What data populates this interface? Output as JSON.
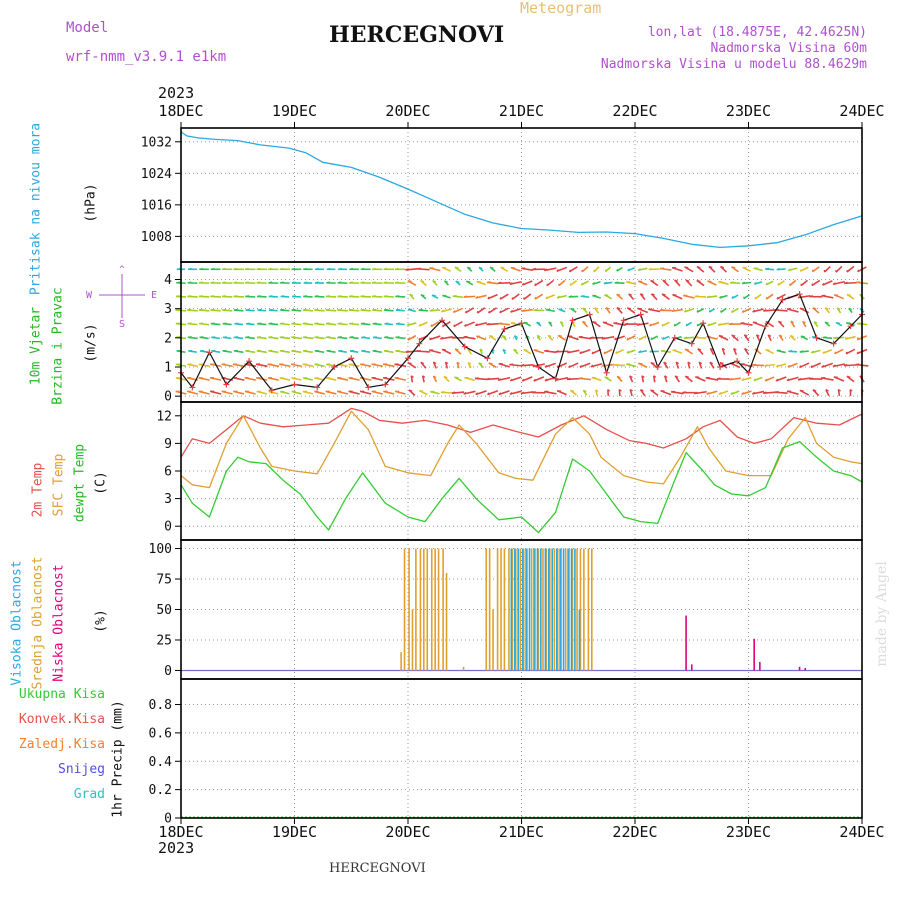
{
  "header": {
    "model_label": "Model",
    "model_name": "wrf-nmm_v3.9.1 e1km",
    "title": "HERCEGNOVI",
    "meteogram_label": "Meteogram",
    "lonlat": "lon,lat (18.4875E, 42.4625N)",
    "altitude": "Nadmorska Visina 60m",
    "model_altitude": "Nadmorska Visina u modelu 88.4629m",
    "year_top": "2023",
    "year_bottom": "2023",
    "footer_title": "HERCEGNOVI",
    "credit": "made by Angel"
  },
  "colors": {
    "pressure": "#29a9e0",
    "wind_label": "#22bb22",
    "t2m": "#e8504a",
    "sfc": "#e0a030",
    "dewpt": "#33cc33",
    "high_cloud": "#29a9e0",
    "mid_cloud": "#e0a030",
    "low_cloud": "#e0007a",
    "total_precip": "#33cc33",
    "conv_precip": "#e8504a",
    "frozen_precip": "#f08030",
    "snow": "#5050e0",
    "hail": "#30c0c0",
    "compass": "#b050d0"
  },
  "chart_data": [
    {
      "type": "line",
      "panel": "pressure",
      "ylabel_main": "Pritisak na nivou mora",
      "ylabel_unit": "(hPa)",
      "x_days": [
        "18DEC",
        "19DEC",
        "20DEC",
        "21DEC",
        "22DEC",
        "23DEC",
        "24DEC"
      ],
      "yticks": [
        1008,
        1016,
        1024,
        1032
      ],
      "ylim": [
        1001.5,
        1035.5
      ],
      "grid": true,
      "series": [
        {
          "x": [
            0,
            0.05,
            0.15,
            0.3,
            0.5,
            0.7,
            0.95,
            1.1,
            1.25,
            1.5,
            1.75,
            2.0,
            2.25,
            2.5,
            2.75,
            3.0,
            3.25,
            3.5,
            3.75,
            4.0,
            4.25,
            4.5,
            4.75,
            5.0,
            5.25,
            5.5,
            5.75,
            6.0
          ],
          "values": [
            1034.5,
            1033.5,
            1033.0,
            1032.6,
            1032.3,
            1031.2,
            1030.4,
            1029.2,
            1026.8,
            1025.5,
            1023.0,
            1020.0,
            1016.8,
            1013.6,
            1011.4,
            1010.0,
            1009.6,
            1009.0,
            1009.1,
            1008.7,
            1007.5,
            1006.0,
            1005.2,
            1005.6,
            1006.4,
            1008.4,
            1011.0,
            1013.2
          ]
        }
      ]
    },
    {
      "type": "line",
      "panel": "wind",
      "ylabel_main": "10m Vjetar",
      "ylabel_sub": "Brzina i Pravac",
      "ylabel_unit": "(m/s)",
      "compass": {
        "north": "N",
        "south": "S",
        "west": "W",
        "east": "E"
      },
      "yticks": [
        0,
        1,
        2,
        3,
        4
      ],
      "ylim": [
        -0.2,
        4.6
      ],
      "grid": true,
      "series": [
        {
          "x": [
            0,
            0.1,
            0.25,
            0.4,
            0.6,
            0.8,
            1.0,
            1.2,
            1.35,
            1.5,
            1.65,
            1.8,
            2.0,
            2.1,
            2.3,
            2.5,
            2.7,
            2.85,
            3.0,
            3.15,
            3.3,
            3.45,
            3.6,
            3.75,
            3.9,
            4.05,
            4.2,
            4.35,
            4.5,
            4.6,
            4.75,
            4.9,
            5.0,
            5.15,
            5.3,
            5.45,
            5.6,
            5.75,
            5.9,
            6.0
          ],
          "values": [
            0.8,
            0.3,
            1.5,
            0.4,
            1.2,
            0.2,
            0.4,
            0.3,
            1.0,
            1.3,
            0.3,
            0.4,
            1.3,
            1.8,
            2.6,
            1.7,
            1.3,
            2.3,
            2.5,
            1.0,
            0.6,
            2.6,
            2.8,
            0.8,
            2.6,
            2.8,
            1.0,
            2.0,
            1.8,
            2.5,
            1.0,
            1.2,
            0.8,
            2.4,
            3.3,
            3.5,
            2.0,
            1.8,
            2.4,
            2.8
          ]
        }
      ]
    },
    {
      "type": "line",
      "panel": "temperature",
      "ylabel_t2m": "2m Temp",
      "ylabel_sfc": "SFC Temp",
      "ylabel_dewpt": "dewpt Temp",
      "ylabel_unit": "(C)",
      "yticks": [
        0,
        3,
        6,
        9,
        12
      ],
      "ylim": [
        -1.5,
        13.5
      ],
      "grid": true,
      "series": [
        {
          "key": "t2m",
          "x": [
            0,
            0.1,
            0.25,
            0.4,
            0.55,
            0.7,
            0.9,
            1.1,
            1.3,
            1.5,
            1.6,
            1.75,
            1.95,
            2.15,
            2.35,
            2.55,
            2.75,
            2.95,
            3.15,
            3.35,
            3.55,
            3.75,
            3.95,
            4.1,
            4.25,
            4.45,
            4.6,
            4.75,
            4.9,
            5.05,
            5.2,
            5.4,
            5.6,
            5.8,
            6.0
          ],
          "values": [
            7.5,
            9.5,
            9.0,
            10.5,
            12.0,
            11.2,
            10.8,
            11.0,
            11.2,
            12.8,
            12.5,
            11.5,
            11.2,
            11.5,
            11.0,
            10.2,
            11.0,
            10.3,
            9.7,
            11.0,
            12.0,
            10.5,
            9.3,
            9.0,
            8.5,
            9.5,
            10.8,
            11.5,
            9.7,
            9.0,
            9.5,
            11.8,
            11.2,
            11.0,
            12.2
          ]
        },
        {
          "key": "sfc",
          "x": [
            0,
            0.1,
            0.25,
            0.4,
            0.55,
            0.7,
            0.8,
            1.0,
            1.2,
            1.35,
            1.5,
            1.65,
            1.8,
            2.0,
            2.2,
            2.35,
            2.45,
            2.6,
            2.8,
            2.95,
            3.1,
            3.3,
            3.45,
            3.6,
            3.7,
            3.9,
            4.1,
            4.25,
            4.4,
            4.55,
            4.65,
            4.8,
            5.0,
            5.2,
            5.35,
            5.5,
            5.6,
            5.75,
            5.9,
            6.0
          ],
          "values": [
            5.5,
            4.5,
            4.2,
            9.0,
            12.0,
            8.5,
            6.5,
            6.0,
            5.7,
            9.0,
            12.5,
            10.5,
            6.5,
            5.8,
            5.5,
            9.0,
            11.0,
            9.0,
            5.8,
            5.2,
            5.0,
            10.0,
            11.8,
            10.0,
            7.5,
            5.5,
            4.8,
            4.6,
            7.5,
            10.8,
            8.5,
            6.0,
            5.5,
            5.5,
            9.5,
            11.8,
            9.0,
            7.5,
            7.0,
            6.8
          ]
        },
        {
          "key": "dewpt",
          "x": [
            0,
            0.1,
            0.25,
            0.4,
            0.5,
            0.6,
            0.75,
            0.9,
            1.05,
            1.2,
            1.3,
            1.45,
            1.6,
            1.8,
            2.0,
            2.15,
            2.3,
            2.45,
            2.6,
            2.8,
            3.0,
            3.15,
            3.3,
            3.45,
            3.6,
            3.75,
            3.9,
            4.05,
            4.2,
            4.35,
            4.45,
            4.6,
            4.7,
            4.85,
            5.0,
            5.15,
            5.3,
            5.45,
            5.6,
            5.75,
            5.9,
            6.0
          ],
          "values": [
            4.5,
            2.5,
            1.0,
            6.0,
            7.5,
            7.0,
            6.8,
            5.0,
            3.5,
            1.0,
            -0.4,
            3.0,
            5.8,
            2.5,
            1.0,
            0.5,
            3.0,
            5.2,
            3.0,
            0.7,
            1.0,
            -0.7,
            1.5,
            7.3,
            6.0,
            3.5,
            1.0,
            0.5,
            0.3,
            5.0,
            8.0,
            6.0,
            4.5,
            3.5,
            3.3,
            4.2,
            8.5,
            9.2,
            7.5,
            6.0,
            5.5,
            4.8
          ]
        }
      ]
    },
    {
      "type": "bar",
      "panel": "clouds",
      "ylabel_high": "Visoka Oblacnost",
      "ylabel_mid": "Srednja Oblacnost",
      "ylabel_low": "Niska Oblacnost",
      "ylabel_unit": "(%)",
      "yticks": [
        0,
        25,
        50,
        75,
        100
      ],
      "ylim": [
        -7,
        107
      ],
      "grid": true,
      "series": [
        {
          "key": "mid",
          "x": [
            1.95,
            1.98,
            2.02,
            2.05,
            2.08,
            2.12,
            2.15,
            2.18,
            2.22,
            2.25,
            2.28,
            2.32,
            2.35,
            2.5,
            2.7,
            2.73,
            2.76,
            2.8,
            2.83,
            2.86,
            2.9,
            2.93,
            2.96,
            3.0,
            3.03,
            3.06,
            3.1,
            3.13,
            3.16,
            3.2,
            3.23,
            3.26,
            3.3,
            3.33,
            3.36,
            3.4,
            3.43,
            3.46,
            3.5,
            3.53,
            3.56,
            3.6,
            3.63
          ],
          "values": [
            15,
            100,
            100,
            50,
            100,
            100,
            100,
            100,
            100,
            100,
            100,
            100,
            80,
            3,
            100,
            100,
            50,
            100,
            100,
            100,
            100,
            100,
            100,
            100,
            100,
            100,
            100,
            100,
            100,
            100,
            100,
            100,
            100,
            100,
            100,
            100,
            100,
            100,
            100,
            100,
            100,
            100,
            100
          ]
        },
        {
          "key": "high",
          "x": [
            2.9,
            2.93,
            2.96,
            3.0,
            3.03,
            3.06,
            3.1,
            3.13,
            3.16,
            3.2,
            3.23,
            3.26,
            3.3,
            3.33,
            3.36,
            3.4,
            3.43,
            3.46,
            3.5
          ],
          "values": [
            100,
            100,
            100,
            100,
            100,
            100,
            100,
            100,
            100,
            100,
            100,
            100,
            100,
            100,
            100,
            100,
            100,
            100,
            50
          ]
        },
        {
          "key": "low",
          "x": [
            4.45,
            4.5,
            5.05,
            5.1,
            5.45,
            5.5
          ],
          "values": [
            45,
            5,
            26,
            7,
            3,
            2
          ]
        }
      ]
    },
    {
      "type": "bar",
      "panel": "precipitation",
      "ylabel_unit": "1hr Precip (mm)",
      "legend": [
        "Ukupna Kisa",
        "Konvek.Kisa",
        "Zaledj.Kisa",
        "Snijeg",
        "Grad"
      ],
      "yticks": [
        0,
        0.2,
        0.4,
        0.6,
        0.8
      ],
      "ylim": [
        0,
        0.98
      ],
      "grid": true,
      "series": [
        {
          "key": "total",
          "x": [],
          "values": []
        }
      ]
    }
  ]
}
